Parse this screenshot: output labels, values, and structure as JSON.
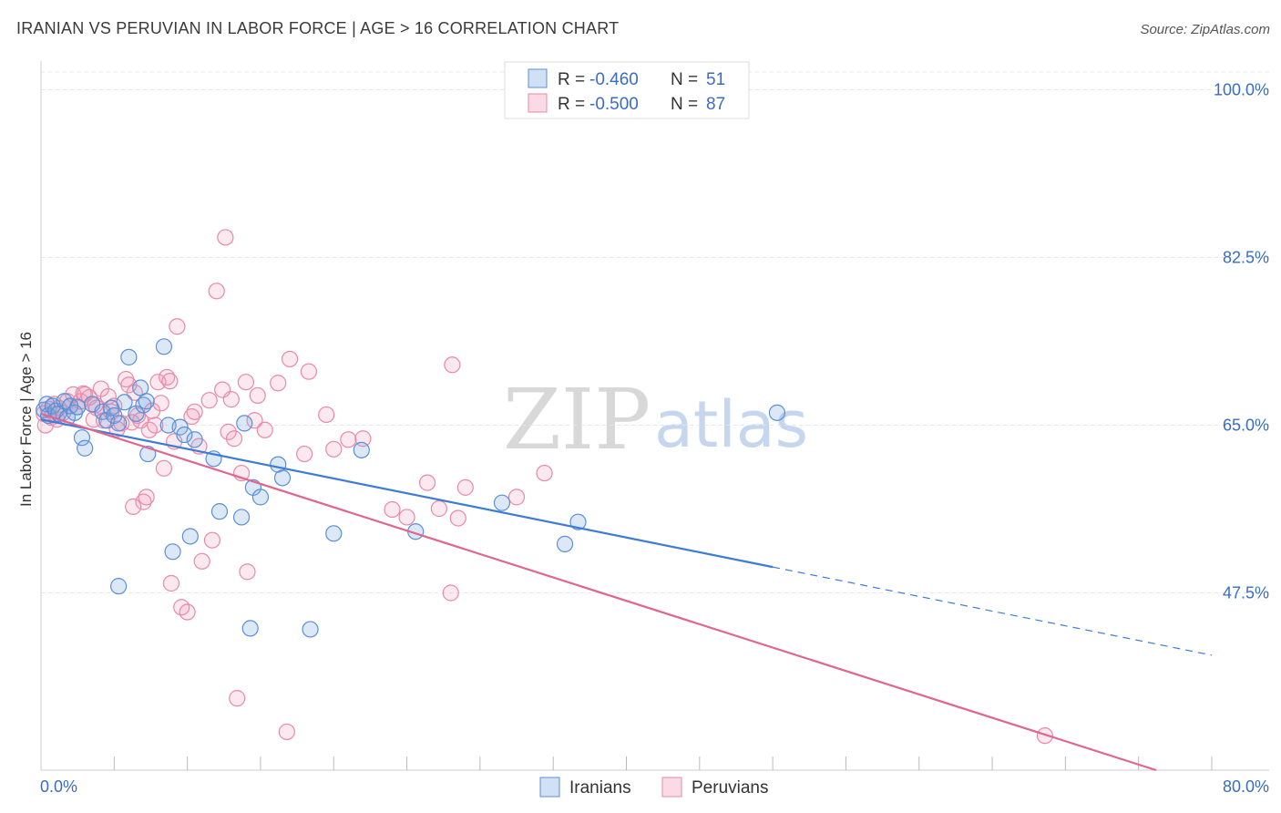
{
  "title": "IRANIAN VS PERUVIAN IN LABOR FORCE | AGE > 16 CORRELATION CHART",
  "source": "Source: ZipAtlas.com",
  "watermark": {
    "zip": "ZIP",
    "atlas": "atlas"
  },
  "colors": {
    "blue": "#3d7bd9",
    "pink": "#e0668f",
    "tick": "#3a6cc6"
  },
  "legend_top": [
    {
      "series": "Iranians",
      "r_label": "R =",
      "r_value": "-0.460",
      "n_label": "N =",
      "n_value": "51"
    },
    {
      "series": "Peruvians",
      "r_label": "R =",
      "r_value": "-0.500",
      "n_label": "N =",
      "n_value": "87"
    }
  ],
  "chart_data": {
    "type": "scatter",
    "xlabel": "",
    "ylabel": "In Labor Force | Age > 16",
    "xlim": [
      0,
      80
    ],
    "ylim": [
      29,
      103
    ],
    "x_tick_labels": [
      "0.0%",
      "80.0%"
    ],
    "y_ticks": [
      100,
      82.5,
      65,
      47.5
    ],
    "y_tick_labels": [
      "100.0%",
      "82.5%",
      "65.0%",
      "47.5%"
    ],
    "legend_bottom": [
      "Iranians",
      "Peruvians"
    ],
    "series": [
      {
        "name": "Iranians",
        "color": "#3d7bd9",
        "trend": {
          "x0": 0,
          "y0": 65.6,
          "x1": 50,
          "y1": 50.2,
          "dash_x1": 80,
          "dash_y1": 41.0
        },
        "points": [
          [
            0.2,
            66.6
          ],
          [
            0.4,
            67.2
          ],
          [
            0.5,
            66.0
          ],
          [
            0.8,
            67.0
          ],
          [
            1.0,
            66.5
          ],
          [
            1.2,
            66.2
          ],
          [
            1.6,
            67.5
          ],
          [
            1.8,
            65.8
          ],
          [
            2.0,
            67.0
          ],
          [
            2.3,
            66.3
          ],
          [
            2.5,
            66.9
          ],
          [
            2.8,
            63.7
          ],
          [
            3.0,
            62.6
          ],
          [
            3.5,
            67.2
          ],
          [
            4.2,
            66.4
          ],
          [
            4.5,
            65.5
          ],
          [
            4.8,
            66.8
          ],
          [
            5.0,
            66.0
          ],
          [
            5.3,
            65.2
          ],
          [
            5.7,
            67.4
          ],
          [
            6.0,
            72.1
          ],
          [
            6.5,
            66.2
          ],
          [
            6.8,
            68.9
          ],
          [
            7.0,
            67.1
          ],
          [
            7.2,
            67.5
          ],
          [
            7.3,
            62.0
          ],
          [
            8.4,
            73.2
          ],
          [
            8.7,
            65.0
          ],
          [
            9.0,
            51.8
          ],
          [
            9.5,
            64.8
          ],
          [
            9.8,
            64.0
          ],
          [
            10.2,
            53.4
          ],
          [
            10.5,
            63.5
          ],
          [
            11.8,
            61.5
          ],
          [
            12.2,
            56.0
          ],
          [
            13.7,
            55.4
          ],
          [
            13.9,
            65.2
          ],
          [
            14.3,
            43.8
          ],
          [
            14.5,
            58.5
          ],
          [
            15.0,
            57.5
          ],
          [
            16.2,
            60.9
          ],
          [
            16.5,
            59.5
          ],
          [
            18.4,
            43.7
          ],
          [
            20.0,
            53.7
          ],
          [
            21.9,
            62.4
          ],
          [
            25.6,
            53.9
          ],
          [
            31.5,
            56.9
          ],
          [
            35.8,
            52.6
          ],
          [
            36.7,
            54.9
          ],
          [
            50.3,
            66.3
          ],
          [
            5.3,
            48.2
          ]
        ]
      },
      {
        "name": "Peruvians",
        "color": "#e0668f",
        "trend": {
          "x0": 0,
          "y0": 66.2,
          "x1": 76.2,
          "y1": 29.0
        },
        "points": [
          [
            0.2,
            66.2
          ],
          [
            0.3,
            65.0
          ],
          [
            0.5,
            66.7
          ],
          [
            0.7,
            65.8
          ],
          [
            0.9,
            67.2
          ],
          [
            1.2,
            66.8
          ],
          [
            1.5,
            66.3
          ],
          [
            1.8,
            67.5
          ],
          [
            2.0,
            67.0
          ],
          [
            2.2,
            68.2
          ],
          [
            2.5,
            66.9
          ],
          [
            2.7,
            67.5
          ],
          [
            3.0,
            68.2
          ],
          [
            3.3,
            67.9
          ],
          [
            3.6,
            65.6
          ],
          [
            3.8,
            66.8
          ],
          [
            4.1,
            68.8
          ],
          [
            4.3,
            65.5
          ],
          [
            4.6,
            68.0
          ],
          [
            4.8,
            66.4
          ],
          [
            5.0,
            67.0
          ],
          [
            5.2,
            64.6
          ],
          [
            5.5,
            65.2
          ],
          [
            5.8,
            69.8
          ],
          [
            6.0,
            69.2
          ],
          [
            6.2,
            65.3
          ],
          [
            6.4,
            68.4
          ],
          [
            6.6,
            66.0
          ],
          [
            6.8,
            65.5
          ],
          [
            7.0,
            57.0
          ],
          [
            7.2,
            57.5
          ],
          [
            7.4,
            64.5
          ],
          [
            7.6,
            66.5
          ],
          [
            7.8,
            65.0
          ],
          [
            8.0,
            69.5
          ],
          [
            8.2,
            67.3
          ],
          [
            8.4,
            60.5
          ],
          [
            8.6,
            70.0
          ],
          [
            8.8,
            69.6
          ],
          [
            9.1,
            63.3
          ],
          [
            9.3,
            75.3
          ],
          [
            9.6,
            46.0
          ],
          [
            10.0,
            45.5
          ],
          [
            10.3,
            65.9
          ],
          [
            10.5,
            66.4
          ],
          [
            10.8,
            62.8
          ],
          [
            11.0,
            50.8
          ],
          [
            11.5,
            67.6
          ],
          [
            11.7,
            53.0
          ],
          [
            12.0,
            79.0
          ],
          [
            12.4,
            68.7
          ],
          [
            12.6,
            84.6
          ],
          [
            12.8,
            64.3
          ],
          [
            13.0,
            67.7
          ],
          [
            13.2,
            63.6
          ],
          [
            13.4,
            36.5
          ],
          [
            13.7,
            60.0
          ],
          [
            14.1,
            49.7
          ],
          [
            14.6,
            65.5
          ],
          [
            14.8,
            68.1
          ],
          [
            15.3,
            64.5
          ],
          [
            16.2,
            69.4
          ],
          [
            17.0,
            71.9
          ],
          [
            18.0,
            62.0
          ],
          [
            18.3,
            70.6
          ],
          [
            19.5,
            66.1
          ],
          [
            20.0,
            62.5
          ],
          [
            21.0,
            63.5
          ],
          [
            22.0,
            63.6
          ],
          [
            24.0,
            56.2
          ],
          [
            25.0,
            55.4
          ],
          [
            26.4,
            59.0
          ],
          [
            27.2,
            56.3
          ],
          [
            28.1,
            71.3
          ],
          [
            34.4,
            60.0
          ],
          [
            28.5,
            55.3
          ],
          [
            32.5,
            57.5
          ],
          [
            29.0,
            58.5
          ],
          [
            28.0,
            47.5
          ],
          [
            68.6,
            32.6
          ],
          [
            16.8,
            33.0
          ],
          [
            1.1,
            65.6
          ],
          [
            2.9,
            68.3
          ],
          [
            3.7,
            67.1
          ],
          [
            6.3,
            56.5
          ],
          [
            8.9,
            48.5
          ],
          [
            14.0,
            69.5
          ]
        ]
      }
    ]
  }
}
